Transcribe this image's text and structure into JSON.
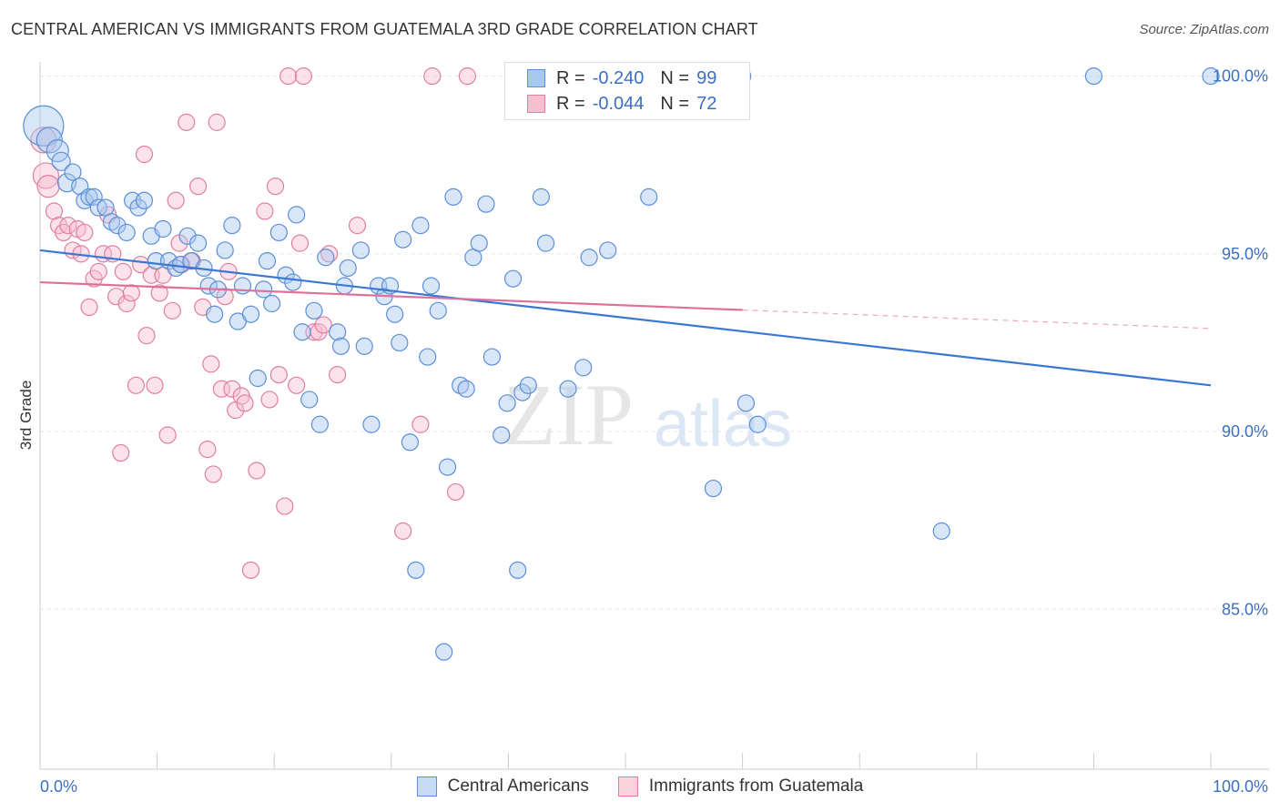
{
  "header": {
    "title": "CENTRAL AMERICAN VS IMMIGRANTS FROM GUATEMALA 3RD GRADE CORRELATION CHART",
    "source": "Source: ZipAtlas.com"
  },
  "watermark": {
    "zip": "ZIP",
    "atlas": "atlas"
  },
  "legend": {
    "r_label": "R =",
    "n_label": "N =",
    "rows": [
      {
        "r": "-0.240",
        "n": "99",
        "color": "#a9c8f0",
        "border": "#5b8fd8"
      },
      {
        "r": "-0.044",
        "n": "72",
        "color": "#f8bfd0",
        "border": "#e07fa0"
      }
    ]
  },
  "colors": {
    "blue": "#3a78d4",
    "pink": "#e0709a",
    "tick_label": "#3b6fc5",
    "grid": "#e6e6e6"
  },
  "chart_data": {
    "type": "scatter",
    "title": "CENTRAL AMERICAN VS IMMIGRANTS FROM GUATEMALA 3RD GRADE CORRELATION CHART",
    "xlabel": "",
    "ylabel": "3rd Grade",
    "xlim": [
      0,
      100
    ],
    "ylim": [
      80.5,
      100.4
    ],
    "x_tick_labels": [
      "0.0%",
      "100.0%"
    ],
    "y_ticks": [
      85,
      90,
      95,
      100
    ],
    "y_tick_labels": [
      "85.0%",
      "90.0%",
      "95.0%",
      "100.0%"
    ],
    "grid": true,
    "legend_position": "bottom-center",
    "series": [
      {
        "name": "Central Americans",
        "color": "#a9c8f0",
        "stroke": "#5b8fd8",
        "r": -0.24,
        "n": 99,
        "trend": {
          "x0": 0,
          "y0": 95.1,
          "x1": 100,
          "y1": 91.3,
          "dash_from": null
        },
        "points": [
          [
            0.3,
            98.6,
            22
          ],
          [
            0.8,
            98.2,
            14
          ],
          [
            1.5,
            97.9,
            12
          ],
          [
            1.8,
            97.6,
            10
          ],
          [
            2.3,
            97.0,
            10
          ],
          [
            2.8,
            97.3,
            9
          ],
          [
            3.4,
            96.9,
            9
          ],
          [
            3.8,
            96.5,
            9
          ],
          [
            4.2,
            96.6,
            9
          ],
          [
            4.6,
            96.6,
            9
          ],
          [
            5.0,
            96.3,
            9
          ],
          [
            5.6,
            96.3,
            9
          ],
          [
            6.1,
            95.9,
            9
          ],
          [
            6.6,
            95.8,
            9
          ],
          [
            7.4,
            95.6,
            9
          ],
          [
            7.9,
            96.5,
            9
          ],
          [
            8.4,
            96.3,
            9
          ],
          [
            8.9,
            96.5,
            9
          ],
          [
            9.5,
            95.5,
            9
          ],
          [
            9.9,
            94.8,
            9
          ],
          [
            10.5,
            95.7,
            9
          ],
          [
            11.0,
            94.8,
            9
          ],
          [
            11.6,
            94.6,
            9
          ],
          [
            12.0,
            94.7,
            9
          ],
          [
            12.6,
            95.5,
            9
          ],
          [
            12.9,
            94.8,
            9
          ],
          [
            13.5,
            95.3,
            9
          ],
          [
            14.0,
            94.6,
            9
          ],
          [
            14.4,
            94.1,
            9
          ],
          [
            14.9,
            93.3,
            9
          ],
          [
            15.2,
            94.0,
            9
          ],
          [
            15.8,
            95.1,
            9
          ],
          [
            16.4,
            95.8,
            9
          ],
          [
            16.9,
            93.1,
            9
          ],
          [
            17.3,
            94.1,
            9
          ],
          [
            18.0,
            93.3,
            9
          ],
          [
            18.6,
            91.5,
            9
          ],
          [
            19.1,
            94.0,
            9
          ],
          [
            19.4,
            94.8,
            9
          ],
          [
            19.8,
            93.6,
            9
          ],
          [
            20.4,
            95.6,
            9
          ],
          [
            21.0,
            94.4,
            9
          ],
          [
            21.6,
            94.2,
            9
          ],
          [
            21.9,
            96.1,
            9
          ],
          [
            22.4,
            92.8,
            9
          ],
          [
            23.0,
            90.9,
            9
          ],
          [
            23.4,
            93.4,
            9
          ],
          [
            23.9,
            90.2,
            9
          ],
          [
            24.4,
            94.9,
            9
          ],
          [
            25.4,
            92.8,
            9
          ],
          [
            25.7,
            92.4,
            9
          ],
          [
            26.0,
            94.1,
            9
          ],
          [
            26.3,
            94.6,
            9
          ],
          [
            27.4,
            95.1,
            9
          ],
          [
            27.7,
            92.4,
            9
          ],
          [
            28.3,
            90.2,
            9
          ],
          [
            28.9,
            94.1,
            9
          ],
          [
            29.4,
            93.8,
            9
          ],
          [
            29.9,
            94.1,
            9
          ],
          [
            30.3,
            93.3,
            9
          ],
          [
            30.7,
            92.5,
            9
          ],
          [
            31.0,
            95.4,
            9
          ],
          [
            31.6,
            89.7,
            9
          ],
          [
            32.1,
            86.1,
            9
          ],
          [
            32.5,
            95.8,
            9
          ],
          [
            33.1,
            92.1,
            9
          ],
          [
            33.4,
            94.1,
            9
          ],
          [
            34.0,
            93.4,
            9
          ],
          [
            34.5,
            83.8,
            9
          ],
          [
            34.8,
            89.0,
            9
          ],
          [
            35.3,
            96.6,
            9
          ],
          [
            35.9,
            91.3,
            9
          ],
          [
            36.4,
            91.2,
            9
          ],
          [
            37.0,
            94.9,
            9
          ],
          [
            37.5,
            95.3,
            9
          ],
          [
            38.1,
            96.4,
            9
          ],
          [
            38.6,
            92.1,
            9
          ],
          [
            39.4,
            89.9,
            9
          ],
          [
            39.9,
            90.8,
            9
          ],
          [
            40.4,
            94.3,
            9
          ],
          [
            40.8,
            86.1,
            9
          ],
          [
            41.2,
            91.1,
            9
          ],
          [
            41.7,
            91.3,
            9
          ],
          [
            42.8,
            96.6,
            9
          ],
          [
            43.2,
            95.3,
            9
          ],
          [
            45.1,
            91.2,
            9
          ],
          [
            46.4,
            91.8,
            9
          ],
          [
            46.9,
            94.9,
            9
          ],
          [
            48.5,
            95.1,
            9
          ],
          [
            50.0,
            100.0,
            9
          ],
          [
            52.0,
            96.6,
            9
          ],
          [
            57.5,
            88.4,
            9
          ],
          [
            60.0,
            100.0,
            9
          ],
          [
            60.3,
            90.8,
            9
          ],
          [
            61.3,
            90.2,
            9
          ],
          [
            77.0,
            87.2,
            9
          ],
          [
            90.0,
            100.0,
            9
          ],
          [
            100.0,
            100.0,
            9
          ]
        ]
      },
      {
        "name": "Immigrants from Guatemala",
        "color": "#f8bfd0",
        "stroke": "#e07fa0",
        "r": -0.044,
        "n": 72,
        "trend": {
          "x0": 0,
          "y0": 94.2,
          "x1": 100,
          "y1": 92.9,
          "dash_from": 60
        },
        "points": [
          [
            0.3,
            98.2,
            14
          ],
          [
            0.5,
            97.2,
            14
          ],
          [
            0.7,
            96.9,
            12
          ],
          [
            1.2,
            96.2,
            9
          ],
          [
            1.6,
            95.8,
            9
          ],
          [
            2.0,
            95.6,
            9
          ],
          [
            2.4,
            95.8,
            9
          ],
          [
            2.8,
            95.1,
            9
          ],
          [
            3.2,
            95.7,
            9
          ],
          [
            3.5,
            95.0,
            9
          ],
          [
            3.8,
            95.6,
            9
          ],
          [
            4.2,
            93.5,
            9
          ],
          [
            4.6,
            94.3,
            9
          ],
          [
            5.0,
            94.5,
            9
          ],
          [
            5.4,
            95.0,
            9
          ],
          [
            5.8,
            96.1,
            9
          ],
          [
            6.2,
            95.0,
            9
          ],
          [
            6.5,
            93.8,
            9
          ],
          [
            6.9,
            89.4,
            9
          ],
          [
            7.1,
            94.5,
            9
          ],
          [
            7.4,
            93.6,
            9
          ],
          [
            7.8,
            93.9,
            9
          ],
          [
            8.2,
            91.3,
            9
          ],
          [
            8.6,
            94.7,
            9
          ],
          [
            8.9,
            97.8,
            9
          ],
          [
            9.1,
            92.7,
            9
          ],
          [
            9.5,
            94.4,
            9
          ],
          [
            9.8,
            91.3,
            9
          ],
          [
            10.2,
            93.9,
            9
          ],
          [
            10.5,
            94.4,
            9
          ],
          [
            10.9,
            89.9,
            9
          ],
          [
            11.3,
            93.4,
            9
          ],
          [
            11.6,
            96.5,
            9
          ],
          [
            11.9,
            95.3,
            9
          ],
          [
            12.1,
            94.7,
            9
          ],
          [
            12.5,
            98.7,
            9
          ],
          [
            13.0,
            94.8,
            9
          ],
          [
            13.5,
            96.9,
            9
          ],
          [
            13.9,
            93.5,
            9
          ],
          [
            14.3,
            89.5,
            9
          ],
          [
            14.6,
            91.9,
            9
          ],
          [
            14.8,
            88.8,
            9
          ],
          [
            15.1,
            98.7,
            9
          ],
          [
            15.5,
            91.2,
            9
          ],
          [
            15.8,
            93.8,
            9
          ],
          [
            16.1,
            94.5,
            9
          ],
          [
            16.4,
            91.2,
            9
          ],
          [
            16.7,
            90.6,
            9
          ],
          [
            17.2,
            91.0,
            9
          ],
          [
            17.5,
            90.8,
            9
          ],
          [
            18.0,
            86.1,
            9
          ],
          [
            18.5,
            88.9,
            9
          ],
          [
            19.2,
            96.2,
            9
          ],
          [
            19.6,
            90.9,
            9
          ],
          [
            20.1,
            96.9,
            9
          ],
          [
            20.4,
            91.6,
            9
          ],
          [
            20.9,
            87.9,
            9
          ],
          [
            21.2,
            100.0,
            9
          ],
          [
            21.9,
            91.3,
            9
          ],
          [
            22.2,
            95.3,
            9
          ],
          [
            22.5,
            100.0,
            9
          ],
          [
            23.4,
            92.8,
            9
          ],
          [
            23.8,
            92.8,
            9
          ],
          [
            24.2,
            93.0,
            9
          ],
          [
            24.7,
            95.0,
            9
          ],
          [
            25.4,
            91.6,
            9
          ],
          [
            27.1,
            95.8,
            9
          ],
          [
            31.0,
            87.2,
            9
          ],
          [
            32.5,
            90.2,
            9
          ],
          [
            33.5,
            100.0,
            9
          ],
          [
            35.5,
            88.3,
            9
          ],
          [
            36.5,
            100.0,
            9
          ]
        ]
      }
    ]
  },
  "bottom_legend": [
    {
      "label": "Central Americans",
      "color": "#a9c8f0",
      "border": "#5b8fd8"
    },
    {
      "label": "Immigrants from Guatemala",
      "color": "#f8bfd0",
      "border": "#e07fa0"
    }
  ]
}
